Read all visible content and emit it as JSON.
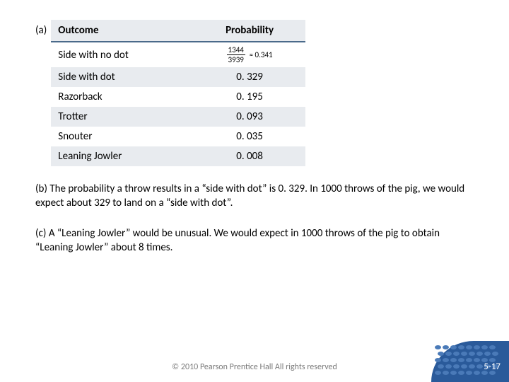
{
  "partA": {
    "label": "(a)",
    "headers": {
      "outcome": "Outcome",
      "prob": "Probability"
    },
    "fraction": {
      "num": "1344",
      "den": "3939",
      "approx": "≈ 0.341"
    },
    "rows": [
      {
        "outcome": "Side with no dot",
        "prob": ""
      },
      {
        "outcome": "Side with dot",
        "prob": "0. 329"
      },
      {
        "outcome": "Razorback",
        "prob": "0. 195"
      },
      {
        "outcome": "Trotter",
        "prob": "0. 093"
      },
      {
        "outcome": "Snouter",
        "prob": "0. 035"
      },
      {
        "outcome": "Leaning Jowler",
        "prob": "0. 008"
      }
    ]
  },
  "partB": "(b) The probability a throw results in a “side with dot” is 0. 329.  In 1000 throws of the pig, we would expect about 329 to land on a “side with dot”.",
  "partC": "(c) A “Leaning Jowler” would be unusual.  We would expect in 1000 throws of the pig to obtain “Leaning Jowler” about 8 times.",
  "copyright": "© 2010 Pearson Prentice Hall  All rights reserved",
  "pageNumber": "5-17"
}
